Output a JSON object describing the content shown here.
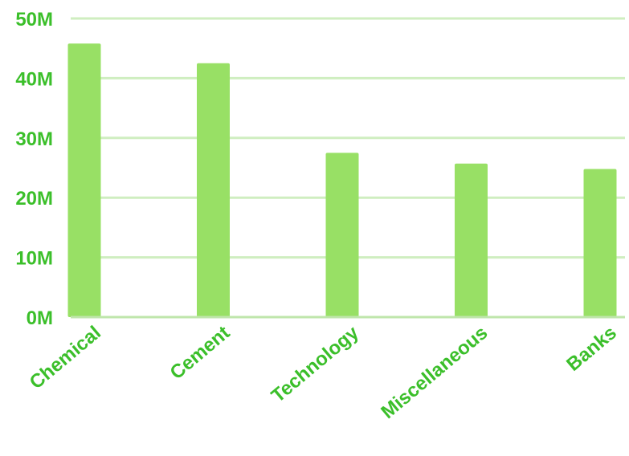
{
  "chart_data": {
    "type": "bar",
    "categories": [
      "Chemical",
      "Cement",
      "Technology",
      "Miscellaneous",
      "Banks"
    ],
    "values": [
      45800000,
      42500000,
      27500000,
      25700000,
      24800000
    ],
    "ylim": [
      0,
      50000000
    ],
    "yticks": [
      0,
      10000000,
      20000000,
      30000000,
      40000000,
      50000000
    ],
    "ytick_labels": [
      "0M",
      "10M",
      "20M",
      "30M",
      "40M",
      "50M"
    ],
    "grid": true,
    "legend": "none",
    "colors": {
      "bar": "#98e065",
      "gridline": "#cfeec0",
      "axis": "#bfe6ab",
      "text": "#3bbf2a"
    }
  }
}
